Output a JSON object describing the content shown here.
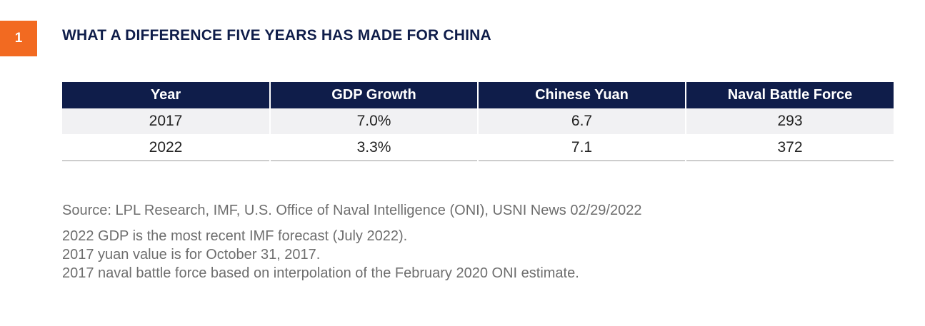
{
  "figure": {
    "number": "1",
    "title": "WHAT A DIFFERENCE FIVE YEARS HAS MADE FOR CHINA"
  },
  "chart_data": {
    "type": "table",
    "columns": [
      "Year",
      "GDP Growth",
      "Chinese Yuan",
      "Naval Battle Force"
    ],
    "rows": [
      [
        "2017",
        "7.0%",
        "6.7",
        "293"
      ],
      [
        "2022",
        "3.3%",
        "7.1",
        "372"
      ]
    ]
  },
  "notes": {
    "source": "Source: LPL Research, IMF, U.S. Office of Naval Intelligence (ONI), USNI News  02/29/2022",
    "lines": [
      "2022 GDP is the most recent IMF forecast (July 2022).",
      "2017 yuan value is for October 31, 2017.",
      "2017 naval battle force based on interpolation of the February 2020 ONI estimate."
    ]
  },
  "colors": {
    "accent": "#f26a21",
    "navy": "#0f1d4a",
    "row_shade": "#f1f1f3",
    "note_text": "#6e6e6e"
  }
}
